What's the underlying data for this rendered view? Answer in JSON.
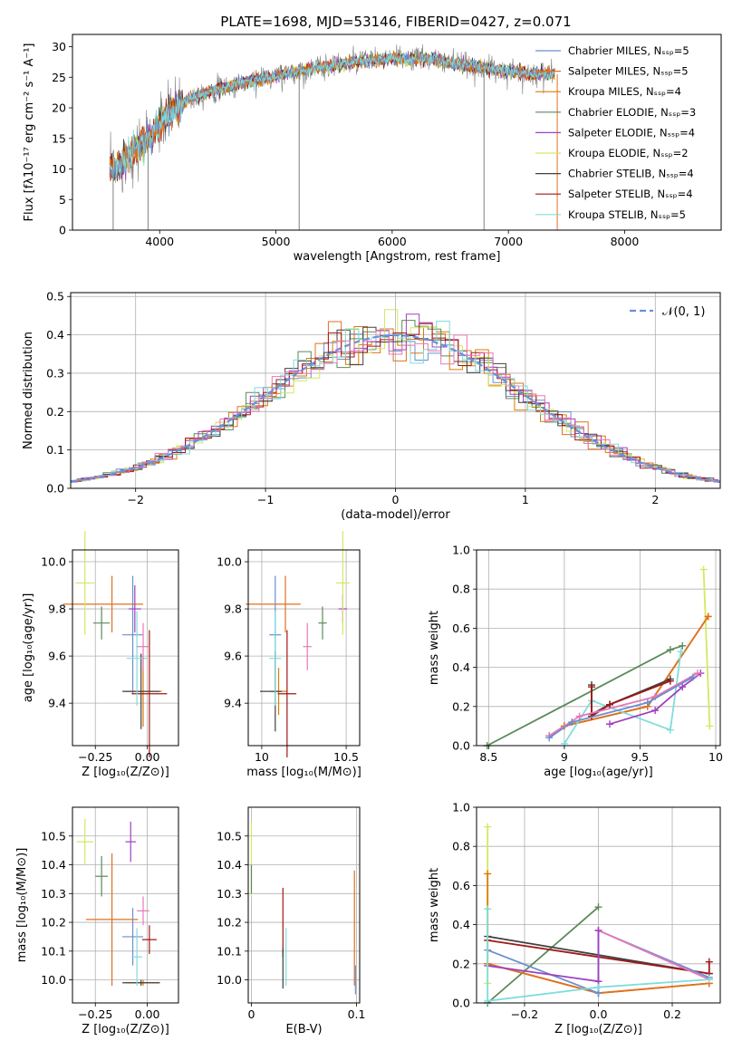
{
  "colors": [
    "#6a8fcf",
    "#e07020",
    "#dd7a00",
    "#5a8a5a",
    "#a040c0",
    "#d4e860",
    "#404040",
    "#a01818",
    "#80dcdc"
  ],
  "extra_colors": {
    "pink": "#e878b8",
    "gray": "#808080"
  },
  "chart_data": [
    {
      "id": "spectrum",
      "type": "line",
      "title": "PLATE=1698, MJD=53146, FIBERID=0427, z=0.071",
      "xlabel": "wavelength [Angstrom, rest frame]",
      "ylabel": "Flux [fλ10⁻¹⁷ erg cm⁻² s⁻¹ A⁻¹]",
      "xlim": [
        3250,
        8830
      ],
      "ylim": [
        0,
        32
      ],
      "xticks": [
        4000,
        5000,
        6000,
        7000,
        8000
      ],
      "yticks": [
        0,
        5,
        10,
        15,
        20,
        25,
        30
      ],
      "grid": false,
      "legend_position": "right",
      "legend": [
        "Chabrier MILES, Nₛₛₚ=5",
        "Salpeter MILES, Nₛₛₚ=5",
        "Kroupa MILES, Nₛₛₚ=4",
        "Chabrier ELODIE, Nₛₛₚ=3",
        "Salpeter ELODIE, Nₛₛₚ=4",
        "Kroupa ELODIE, Nₛₛₚ=2",
        "Chabrier STELIB, Nₛₛₚ=4",
        "Salpeter STELIB, Nₛₛₚ=4",
        "Kroupa STELIB, Nₛₛₚ=5"
      ],
      "continuum": {
        "x": [
          3570,
          3650,
          3800,
          3900,
          4000,
          4100,
          4250,
          4400,
          4600,
          4800,
          5000,
          5200,
          5500,
          5800,
          6000,
          6300,
          6600,
          6900,
          7200,
          7400
        ],
        "y": [
          9.5,
          10.5,
          13.5,
          15,
          17,
          19.5,
          21.5,
          22.5,
          23.5,
          24.5,
          25.2,
          26,
          27,
          27.8,
          28,
          28,
          27,
          26.2,
          25.5,
          25.5
        ]
      },
      "spikes": [
        {
          "x": 5200,
          "y": 0
        },
        {
          "x": 6790,
          "y": 0
        },
        {
          "x": 7420,
          "y": 0
        },
        {
          "x": 3900,
          "y": 0
        },
        {
          "x": 3600,
          "y": 0
        }
      ]
    },
    {
      "id": "residuals",
      "type": "histogram",
      "xlabel": "(data-model)/error",
      "ylabel": "Normed distribution",
      "xlim": [
        -2.5,
        2.5
      ],
      "ylim": [
        0,
        0.51
      ],
      "xticks": [
        -2,
        -1,
        0,
        1,
        2
      ],
      "yticks": [
        0.0,
        0.1,
        0.2,
        0.3,
        0.4,
        0.5
      ],
      "grid": true,
      "bin_width": 0.1,
      "curve": "normal pdf",
      "legend": "𝒩(0, 1)",
      "legend_position": "top-right"
    },
    {
      "id": "age_vs_Z",
      "type": "errorbar",
      "xlabel": "Z [log₁₀(Z/Z⊙)]",
      "ylabel": "age  [log₁₀(age/yr)]",
      "xlim": [
        -0.36,
        0.15
      ],
      "ylim": [
        9.22,
        10.05
      ],
      "xticks": [
        -0.25,
        0.0
      ],
      "xticklabels": [
        "−0.25",
        "0.00"
      ],
      "yticks": [
        9.4,
        9.6,
        9.8,
        10.0
      ],
      "grid": true,
      "points": [
        {
          "c": 0,
          "x": -0.07,
          "y": 9.69,
          "xe": 0.1,
          "ye": 0.25
        },
        {
          "c": 1,
          "x": -0.17,
          "y": 9.82,
          "xe": 0.3,
          "ye": 0.12,
          "yl": 0.47
        },
        {
          "c": 2,
          "x": -0.02,
          "y": 9.45,
          "xe": 0.18,
          "ye": 0.15
        },
        {
          "c": 3,
          "x": -0.22,
          "y": 9.74,
          "xe": 0.08,
          "ye": 0.07
        },
        {
          "c": 4,
          "x": -0.06,
          "y": 9.8,
          "xe": 0.06,
          "ye": 0.1
        },
        {
          "c": 5,
          "x": -0.3,
          "y": 9.91,
          "xe": 0.09,
          "ye": 0.22
        },
        {
          "c": 6,
          "x": -0.03,
          "y": 9.45,
          "xe": 0.18,
          "ye": 0.16,
          "yl": 0.18
        },
        {
          "c": 7,
          "x": 0.01,
          "y": 9.44,
          "xe": 0.17,
          "ye": 0.27
        },
        {
          "c": 8,
          "x": -0.05,
          "y": 9.59,
          "xe": 0.1,
          "ye": 0.2
        },
        {
          "c": 9,
          "x": -0.02,
          "y": 9.64,
          "xe": 0.06,
          "ye": 0.1
        }
      ]
    },
    {
      "id": "age_vs_mass",
      "type": "errorbar",
      "xlabel": "mass [log₁₀(M/M⊙)]",
      "ylabel": "",
      "xlim": [
        9.92,
        10.58
      ],
      "ylim": [
        9.22,
        10.05
      ],
      "xticks": [
        10.0,
        10.5
      ],
      "yticks": [
        9.4,
        9.6,
        9.8,
        10.0
      ],
      "grid": true,
      "points": [
        {
          "c": 0,
          "x": 10.08,
          "y": 9.69,
          "xe": 0.07,
          "ye": 0.25
        },
        {
          "c": 1,
          "x": 10.14,
          "y": 9.82,
          "xe": 0.18,
          "ye": 0.12,
          "yl": 0.47
        },
        {
          "c": 2,
          "x": 10.1,
          "y": 9.45,
          "xe": 0.1,
          "ye": 0.1
        },
        {
          "c": 3,
          "x": 10.36,
          "y": 9.74,
          "xe": 0.05,
          "ye": 0.07
        },
        {
          "c": 4,
          "x": 10.48,
          "y": 9.8,
          "xe": 0.05,
          "ye": 0.06
        },
        {
          "c": 5,
          "x": 10.48,
          "y": 9.91,
          "xe": 0.08,
          "ye": 0.22
        },
        {
          "c": 6,
          "x": 10.08,
          "y": 9.45,
          "xe": 0.08,
          "ye": 0.17,
          "yl": 0.18
        },
        {
          "c": 7,
          "x": 10.15,
          "y": 9.44,
          "xe": 0.11,
          "ye": 0.27
        },
        {
          "c": 8,
          "x": 10.08,
          "y": 9.59,
          "xe": 0.07,
          "ye": 0.2
        },
        {
          "c": 9,
          "x": 10.27,
          "y": 9.64,
          "xe": 0.05,
          "ye": 0.1
        }
      ]
    },
    {
      "id": "weight_vs_age",
      "type": "line",
      "xlabel": "age  [log₁₀(age/yr)]",
      "ylabel": "mass weight",
      "xlim": [
        8.42,
        10.03
      ],
      "ylim": [
        0,
        1.0
      ],
      "xticks": [
        8.5,
        9.0,
        9.5,
        10.0
      ],
      "yticks": [
        0.0,
        0.2,
        0.4,
        0.6,
        0.8,
        1.0
      ],
      "grid": true,
      "series": [
        {
          "c": 3,
          "x": [
            8.49,
            9.7,
            9.78
          ],
          "y": [
            0.0,
            0.49,
            0.51
          ]
        },
        {
          "c": 5,
          "x": [
            9.92,
            9.96
          ],
          "y": [
            0.9,
            0.1
          ]
        },
        {
          "c": 2,
          "x": [
            8.9,
            9.0,
            9.55,
            9.95
          ],
          "y": [
            0.05,
            0.1,
            0.2,
            0.66
          ]
        },
        {
          "c": 1,
          "x": [
            8.9,
            9.0,
            9.55,
            9.95
          ],
          "y": [
            0.05,
            0.1,
            0.2,
            0.66
          ]
        },
        {
          "c": 8,
          "x": [
            9.0,
            9.18,
            9.7,
            9.77
          ],
          "y": [
            0.01,
            0.23,
            0.08,
            0.48
          ]
        },
        {
          "c": 6,
          "x": [
            9.18,
            9.18,
            9.3,
            9.7
          ],
          "y": [
            0.31,
            0.16,
            0.21,
            0.34
          ]
        },
        {
          "c": 7,
          "x": [
            9.18,
            9.18,
            9.3,
            9.7
          ],
          "y": [
            0.3,
            0.15,
            0.21,
            0.33
          ]
        },
        {
          "c": 4,
          "x": [
            9.3,
            9.6,
            9.78,
            9.9
          ],
          "y": [
            0.11,
            0.18,
            0.3,
            0.37
          ]
        },
        {
          "c": 9,
          "x": [
            8.9,
            9.1,
            9.6,
            9.88
          ],
          "y": [
            0.05,
            0.15,
            0.25,
            0.37
          ]
        },
        {
          "c": 0,
          "x": [
            8.9,
            9.05,
            9.55,
            9.85
          ],
          "y": [
            0.04,
            0.12,
            0.22,
            0.35
          ]
        }
      ]
    },
    {
      "id": "mass_vs_Z",
      "type": "errorbar",
      "xlabel": "Z [log₁₀(Z/Z⊙)]",
      "ylabel": "mass [log₁₀(M/M⊙)]",
      "xlim": [
        -0.36,
        0.15
      ],
      "ylim": [
        9.92,
        10.6
      ],
      "xticks": [
        -0.25,
        0.0
      ],
      "xticklabels": [
        "−0.25",
        "0.00"
      ],
      "yticks": [
        10.0,
        10.1,
        10.2,
        10.3,
        10.4,
        10.5
      ],
      "grid": true,
      "points": [
        {
          "c": 0,
          "x": -0.07,
          "y": 10.15,
          "xe": 0.1,
          "ye": 0.1
        },
        {
          "c": 1,
          "x": -0.17,
          "y": 10.21,
          "xe": 0.25,
          "ye": 0.23
        },
        {
          "c": 2,
          "x": -0.02,
          "y": 9.99,
          "xe": 0.16,
          "ye": 0.01
        },
        {
          "c": 3,
          "x": -0.22,
          "y": 10.36,
          "xe": 0.06,
          "ye": 0.07
        },
        {
          "c": 4,
          "x": -0.08,
          "y": 10.48,
          "xe": 0.05,
          "ye": 0.07
        },
        {
          "c": 5,
          "x": -0.3,
          "y": 10.48,
          "xe": 0.08,
          "ye": 0.08
        },
        {
          "c": 6,
          "x": -0.03,
          "y": 9.99,
          "xe": 0.18,
          "ye": 0.01
        },
        {
          "c": 7,
          "x": 0.01,
          "y": 10.14,
          "xe": 0.07,
          "ye": 0.05
        },
        {
          "c": 8,
          "x": -0.05,
          "y": 10.08,
          "xe": 0.05,
          "ye": 0.1
        },
        {
          "c": 9,
          "x": -0.02,
          "y": 10.24,
          "xe": 0.06,
          "ye": 0.05
        }
      ]
    },
    {
      "id": "mass_vs_EBV",
      "type": "errorbar",
      "xlabel": "E(B-V)",
      "ylabel": "",
      "xlim": [
        -0.003,
        0.103
      ],
      "ylim": [
        9.92,
        10.6
      ],
      "xticks": [
        0.0,
        0.1
      ],
      "yticks": [
        10.0,
        10.1,
        10.2,
        10.3,
        10.4,
        10.5
      ],
      "grid": true,
      "points": [
        {
          "c": 5,
          "x": 0.0,
          "y": 10.42,
          "xe": 0.0,
          "ye": 0.13
        },
        {
          "c": 3,
          "x": 0.0,
          "y": 10.35,
          "xe": 0.0,
          "ye": 0.05
        },
        {
          "c": 7,
          "x": 0.03,
          "y": 10.2,
          "xe": 0.0,
          "ye": 0.12
        },
        {
          "c": 6,
          "x": 0.03,
          "y": 10.04,
          "xe": 0.0,
          "ye": 0.07
        },
        {
          "c": 8,
          "x": 0.033,
          "y": 10.08,
          "xe": 0.0,
          "ye": 0.1
        },
        {
          "c": 1,
          "x": 0.098,
          "y": 10.18,
          "xe": 0.0,
          "ye": 0.2
        },
        {
          "c": 0,
          "x": 0.099,
          "y": 10.0,
          "xe": 0.0,
          "ye": 0.05
        }
      ]
    },
    {
      "id": "weight_vs_Z",
      "type": "line",
      "xlabel": "Z [log₁₀(Z/Z⊙)]",
      "ylabel": "mass weight",
      "xlim": [
        -0.33,
        0.33
      ],
      "ylim": [
        0,
        1.0
      ],
      "xticks": [
        -0.2,
        0.0,
        0.2
      ],
      "xticklabels": [
        "−0.2",
        "0.0",
        "0.2"
      ],
      "yticks": [
        0.0,
        0.2,
        0.4,
        0.6,
        0.8,
        1.0
      ],
      "grid": true,
      "series": [
        {
          "c": 5,
          "x": [
            -0.3,
            -0.3
          ],
          "y": [
            0.9,
            0.1
          ]
        },
        {
          "c": 3,
          "x": [
            -0.3,
            0.0
          ],
          "y": [
            0.0,
            0.49
          ]
        },
        {
          "c": 2,
          "x": [
            -0.3,
            -0.3,
            0.0,
            0.3
          ],
          "y": [
            0.66,
            0.2,
            0.05,
            0.1
          ]
        },
        {
          "c": 1,
          "x": [
            -0.3,
            0.0,
            0.3
          ],
          "y": [
            0.2,
            0.05,
            0.1
          ]
        },
        {
          "c": 6,
          "x": [
            -0.3,
            0.3
          ],
          "y": [
            0.34,
            0.15
          ]
        },
        {
          "c": 7,
          "x": [
            -0.3,
            0.3,
            0.3
          ],
          "y": [
            0.32,
            0.15,
            0.21
          ]
        },
        {
          "c": 0,
          "x": [
            -0.3,
            0.0,
            0.0,
            0.3
          ],
          "y": [
            0.27,
            0.05,
            0.37,
            0.13
          ]
        },
        {
          "c": 9,
          "x": [
            0.0,
            0.3
          ],
          "y": [
            0.37,
            0.12
          ]
        },
        {
          "c": 4,
          "x": [
            -0.3,
            0.0,
            0.0
          ],
          "y": [
            0.19,
            0.11,
            0.37
          ]
        },
        {
          "c": 8,
          "x": [
            -0.3,
            -0.3,
            0.0,
            0.3
          ],
          "y": [
            0.48,
            0.01,
            0.08,
            0.12
          ]
        }
      ]
    }
  ]
}
